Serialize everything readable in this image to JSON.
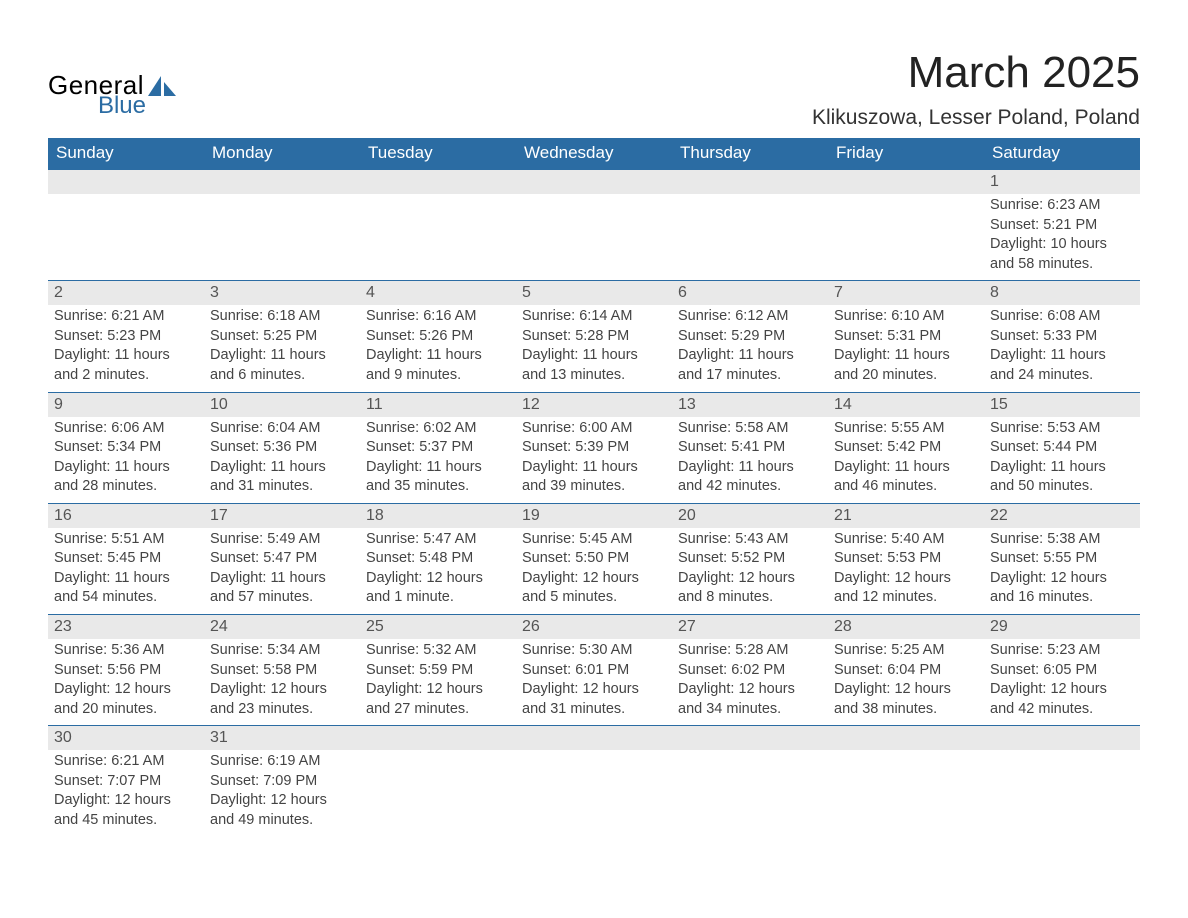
{
  "logo": {
    "line1": "General",
    "line2": "Blue"
  },
  "title": "March 2025",
  "location": "Klikuszowa, Lesser Poland, Poland",
  "colors": {
    "header_bg": "#2b6ca3",
    "header_text": "#ffffff",
    "daynum_bg": "#e9e9e9",
    "row_border": "#2b6ca3",
    "body_text": "#444444",
    "page_bg": "#ffffff",
    "logo_black": "#000000",
    "logo_blue": "#2b6ca3"
  },
  "typography": {
    "title_fontsize": 44,
    "location_fontsize": 21,
    "header_fontsize": 17,
    "daynum_fontsize": 16,
    "detail_fontsize": 14.5,
    "font_family": "Arial"
  },
  "calendar": {
    "type": "table",
    "columns": [
      "Sunday",
      "Monday",
      "Tuesday",
      "Wednesday",
      "Thursday",
      "Friday",
      "Saturday"
    ],
    "weeks": [
      [
        null,
        null,
        null,
        null,
        null,
        null,
        {
          "day": "1",
          "sunrise": "Sunrise: 6:23 AM",
          "sunset": "Sunset: 5:21 PM",
          "daylight": "Daylight: 10 hours and 58 minutes."
        }
      ],
      [
        {
          "day": "2",
          "sunrise": "Sunrise: 6:21 AM",
          "sunset": "Sunset: 5:23 PM",
          "daylight": "Daylight: 11 hours and 2 minutes."
        },
        {
          "day": "3",
          "sunrise": "Sunrise: 6:18 AM",
          "sunset": "Sunset: 5:25 PM",
          "daylight": "Daylight: 11 hours and 6 minutes."
        },
        {
          "day": "4",
          "sunrise": "Sunrise: 6:16 AM",
          "sunset": "Sunset: 5:26 PM",
          "daylight": "Daylight: 11 hours and 9 minutes."
        },
        {
          "day": "5",
          "sunrise": "Sunrise: 6:14 AM",
          "sunset": "Sunset: 5:28 PM",
          "daylight": "Daylight: 11 hours and 13 minutes."
        },
        {
          "day": "6",
          "sunrise": "Sunrise: 6:12 AM",
          "sunset": "Sunset: 5:29 PM",
          "daylight": "Daylight: 11 hours and 17 minutes."
        },
        {
          "day": "7",
          "sunrise": "Sunrise: 6:10 AM",
          "sunset": "Sunset: 5:31 PM",
          "daylight": "Daylight: 11 hours and 20 minutes."
        },
        {
          "day": "8",
          "sunrise": "Sunrise: 6:08 AM",
          "sunset": "Sunset: 5:33 PM",
          "daylight": "Daylight: 11 hours and 24 minutes."
        }
      ],
      [
        {
          "day": "9",
          "sunrise": "Sunrise: 6:06 AM",
          "sunset": "Sunset: 5:34 PM",
          "daylight": "Daylight: 11 hours and 28 minutes."
        },
        {
          "day": "10",
          "sunrise": "Sunrise: 6:04 AM",
          "sunset": "Sunset: 5:36 PM",
          "daylight": "Daylight: 11 hours and 31 minutes."
        },
        {
          "day": "11",
          "sunrise": "Sunrise: 6:02 AM",
          "sunset": "Sunset: 5:37 PM",
          "daylight": "Daylight: 11 hours and 35 minutes."
        },
        {
          "day": "12",
          "sunrise": "Sunrise: 6:00 AM",
          "sunset": "Sunset: 5:39 PM",
          "daylight": "Daylight: 11 hours and 39 minutes."
        },
        {
          "day": "13",
          "sunrise": "Sunrise: 5:58 AM",
          "sunset": "Sunset: 5:41 PM",
          "daylight": "Daylight: 11 hours and 42 minutes."
        },
        {
          "day": "14",
          "sunrise": "Sunrise: 5:55 AM",
          "sunset": "Sunset: 5:42 PM",
          "daylight": "Daylight: 11 hours and 46 minutes."
        },
        {
          "day": "15",
          "sunrise": "Sunrise: 5:53 AM",
          "sunset": "Sunset: 5:44 PM",
          "daylight": "Daylight: 11 hours and 50 minutes."
        }
      ],
      [
        {
          "day": "16",
          "sunrise": "Sunrise: 5:51 AM",
          "sunset": "Sunset: 5:45 PM",
          "daylight": "Daylight: 11 hours and 54 minutes."
        },
        {
          "day": "17",
          "sunrise": "Sunrise: 5:49 AM",
          "sunset": "Sunset: 5:47 PM",
          "daylight": "Daylight: 11 hours and 57 minutes."
        },
        {
          "day": "18",
          "sunrise": "Sunrise: 5:47 AM",
          "sunset": "Sunset: 5:48 PM",
          "daylight": "Daylight: 12 hours and 1 minute."
        },
        {
          "day": "19",
          "sunrise": "Sunrise: 5:45 AM",
          "sunset": "Sunset: 5:50 PM",
          "daylight": "Daylight: 12 hours and 5 minutes."
        },
        {
          "day": "20",
          "sunrise": "Sunrise: 5:43 AM",
          "sunset": "Sunset: 5:52 PM",
          "daylight": "Daylight: 12 hours and 8 minutes."
        },
        {
          "day": "21",
          "sunrise": "Sunrise: 5:40 AM",
          "sunset": "Sunset: 5:53 PM",
          "daylight": "Daylight: 12 hours and 12 minutes."
        },
        {
          "day": "22",
          "sunrise": "Sunrise: 5:38 AM",
          "sunset": "Sunset: 5:55 PM",
          "daylight": "Daylight: 12 hours and 16 minutes."
        }
      ],
      [
        {
          "day": "23",
          "sunrise": "Sunrise: 5:36 AM",
          "sunset": "Sunset: 5:56 PM",
          "daylight": "Daylight: 12 hours and 20 minutes."
        },
        {
          "day": "24",
          "sunrise": "Sunrise: 5:34 AM",
          "sunset": "Sunset: 5:58 PM",
          "daylight": "Daylight: 12 hours and 23 minutes."
        },
        {
          "day": "25",
          "sunrise": "Sunrise: 5:32 AM",
          "sunset": "Sunset: 5:59 PM",
          "daylight": "Daylight: 12 hours and 27 minutes."
        },
        {
          "day": "26",
          "sunrise": "Sunrise: 5:30 AM",
          "sunset": "Sunset: 6:01 PM",
          "daylight": "Daylight: 12 hours and 31 minutes."
        },
        {
          "day": "27",
          "sunrise": "Sunrise: 5:28 AM",
          "sunset": "Sunset: 6:02 PM",
          "daylight": "Daylight: 12 hours and 34 minutes."
        },
        {
          "day": "28",
          "sunrise": "Sunrise: 5:25 AM",
          "sunset": "Sunset: 6:04 PM",
          "daylight": "Daylight: 12 hours and 38 minutes."
        },
        {
          "day": "29",
          "sunrise": "Sunrise: 5:23 AM",
          "sunset": "Sunset: 6:05 PM",
          "daylight": "Daylight: 12 hours and 42 minutes."
        }
      ],
      [
        {
          "day": "30",
          "sunrise": "Sunrise: 6:21 AM",
          "sunset": "Sunset: 7:07 PM",
          "daylight": "Daylight: 12 hours and 45 minutes."
        },
        {
          "day": "31",
          "sunrise": "Sunrise: 6:19 AM",
          "sunset": "Sunset: 7:09 PM",
          "daylight": "Daylight: 12 hours and 49 minutes."
        },
        null,
        null,
        null,
        null,
        null
      ]
    ]
  }
}
